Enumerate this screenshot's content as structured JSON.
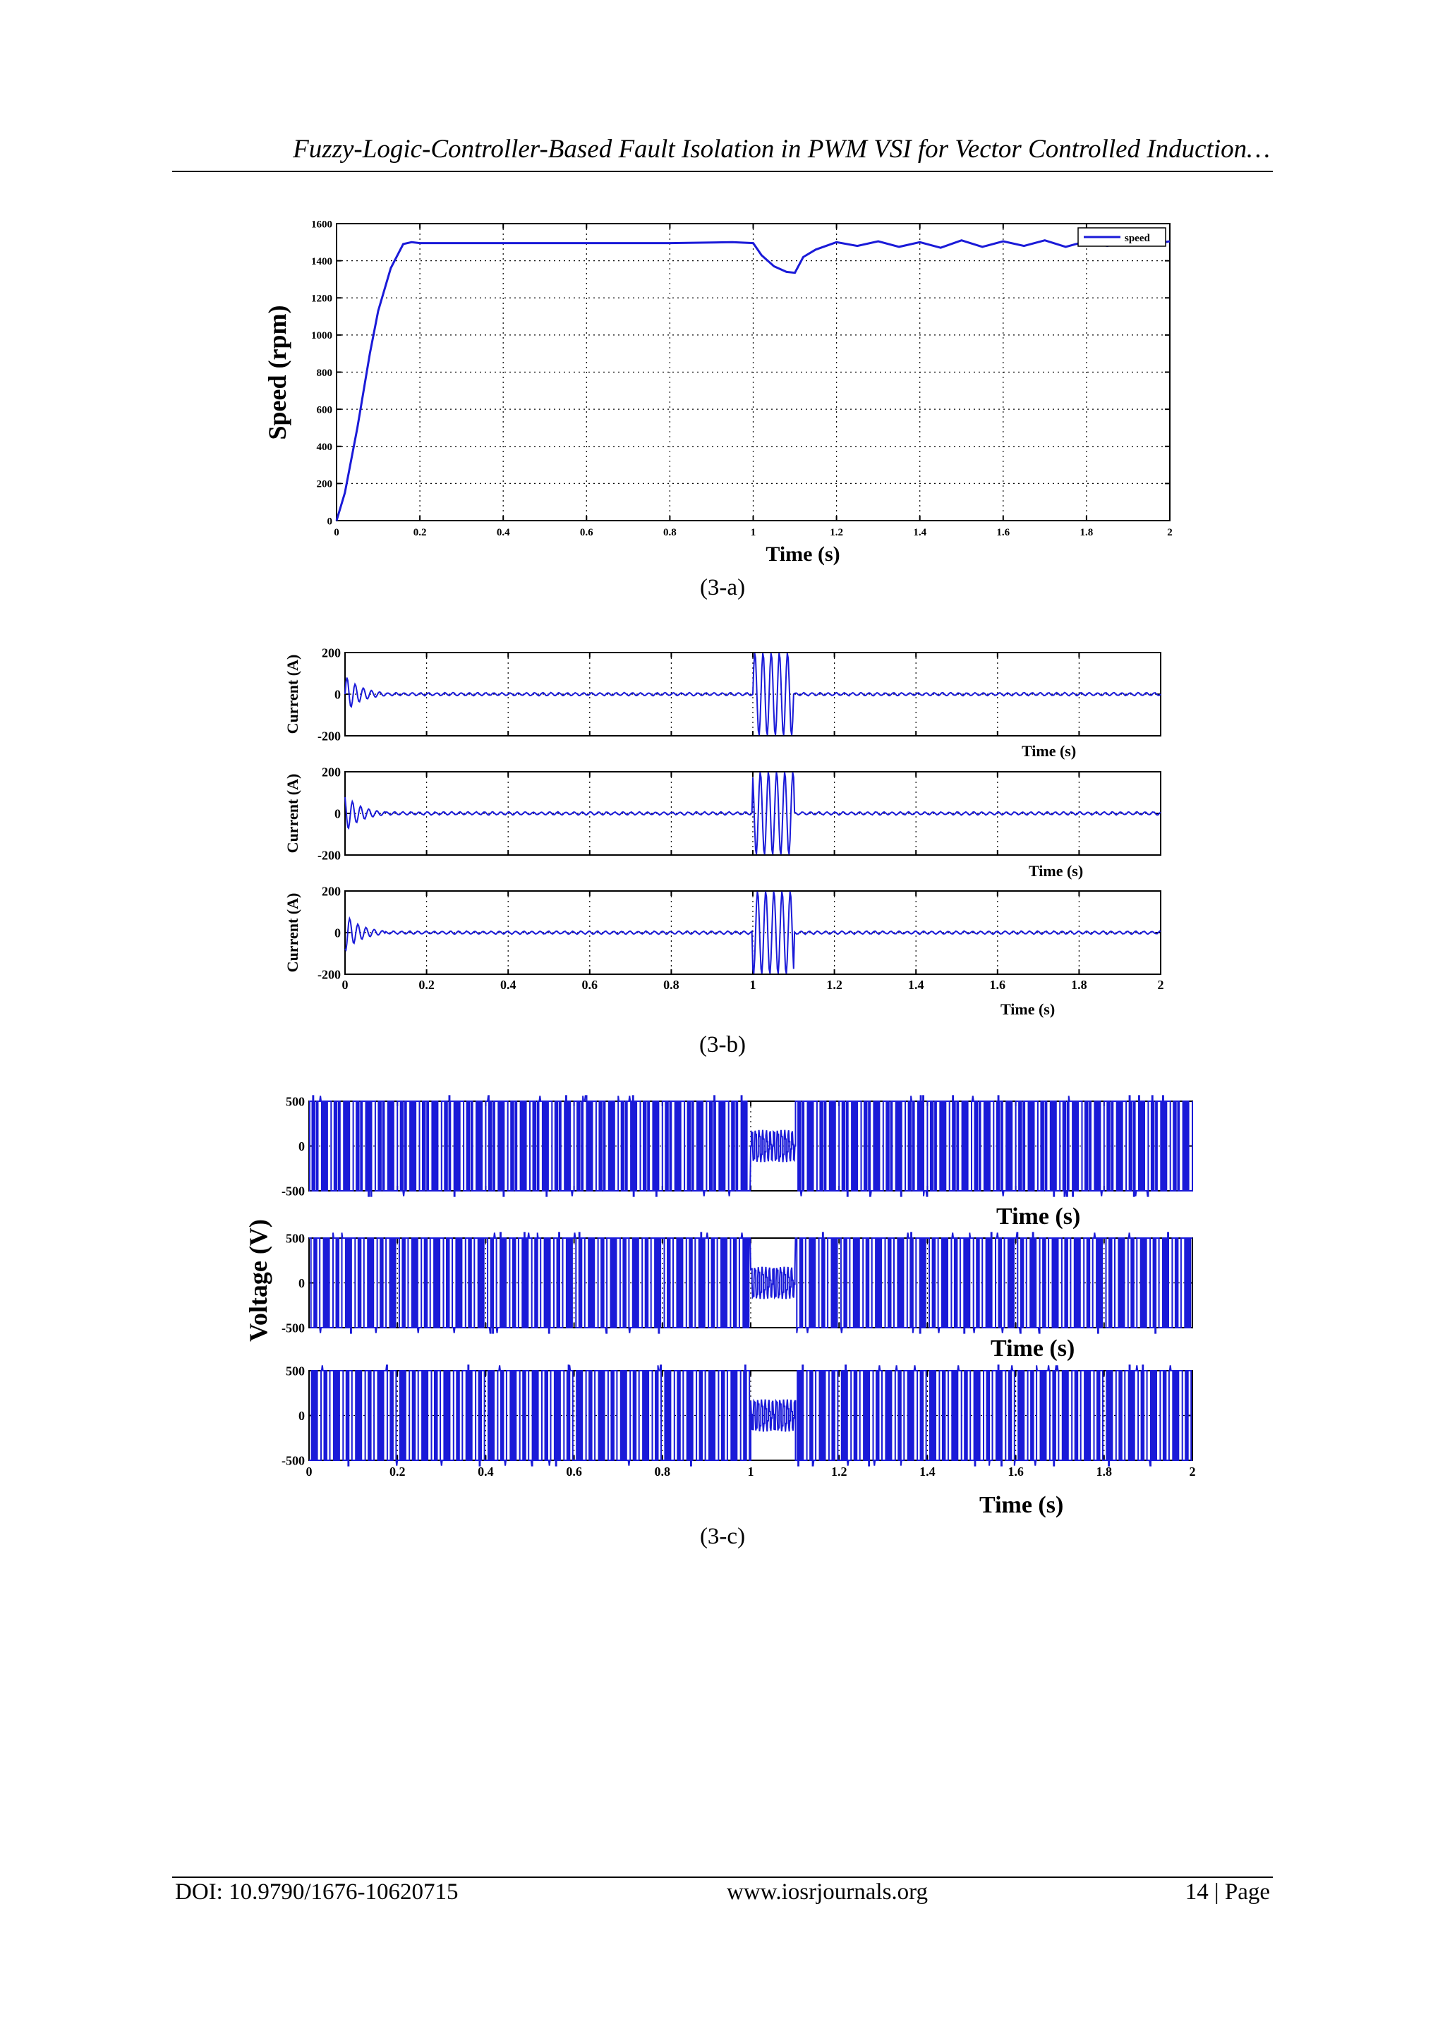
{
  "header": {
    "title": "Fuzzy-Logic-Controller-Based Fault Isolation in PWM VSI for Vector Controlled Induction…"
  },
  "captions": {
    "a": "(3-a)",
    "b": "(3-b)",
    "c": "(3-c)"
  },
  "footer": {
    "doi": "DOI: 10.9790/1676-10620715",
    "site": "www.iosrjournals.org",
    "page": "14 | Page"
  },
  "colors": {
    "trace": "#1a1ad8",
    "grid": "#000000"
  },
  "chart_data": [
    {
      "type": "line",
      "id": "3-a",
      "xlabel": "Time (s)",
      "ylabel": "Speed (rpm)",
      "xlim": [
        0,
        2
      ],
      "ylim": [
        0,
        1600
      ],
      "xticks": [
        "0",
        "0.2",
        "0.4",
        "0.6",
        "0.8",
        "1",
        "1.2",
        "1.4",
        "1.6",
        "1.8",
        "2"
      ],
      "yticks": [
        "0",
        "200",
        "400",
        "600",
        "800",
        "1000",
        "1200",
        "1400",
        "1600"
      ],
      "grid": true,
      "legend": "top-right",
      "series": [
        {
          "name": "speed",
          "x": [
            0,
            0.02,
            0.05,
            0.08,
            0.1,
            0.13,
            0.16,
            0.18,
            0.2,
            0.4,
            0.6,
            0.8,
            0.95,
            1.0,
            1.02,
            1.05,
            1.08,
            1.1,
            1.12,
            1.15,
            1.2,
            1.25,
            1.3,
            1.35,
            1.4,
            1.45,
            1.5,
            1.55,
            1.6,
            1.65,
            1.7,
            1.75,
            1.8,
            1.85,
            1.9,
            1.95,
            2.0
          ],
          "y": [
            0,
            150,
            500,
            900,
            1130,
            1360,
            1490,
            1500,
            1495,
            1495,
            1495,
            1495,
            1500,
            1495,
            1430,
            1370,
            1340,
            1335,
            1420,
            1460,
            1500,
            1480,
            1505,
            1475,
            1500,
            1470,
            1510,
            1475,
            1505,
            1480,
            1510,
            1475,
            1505,
            1480,
            1510,
            1485,
            1505
          ]
        }
      ]
    },
    {
      "type": "line",
      "id": "3-b",
      "xlabel": "Time (s)",
      "ylabel": "Current (A)",
      "xlim": [
        0,
        2
      ],
      "ylim": [
        -200,
        200
      ],
      "xticks": [
        "0",
        "0.2",
        "0.4",
        "0.6",
        "0.8",
        "1",
        "1.2",
        "1.4",
        "1.6",
        "1.8",
        "2"
      ],
      "yticks": [
        "-200",
        "0",
        "200"
      ],
      "grid": true,
      "signal": {
        "startup_amplitude": 90,
        "startup_end": 0.1,
        "steady_amplitude": 8,
        "fault_start": 1.0,
        "fault_end": 1.1,
        "fault_amplitude": 200
      },
      "panels": 3
    },
    {
      "type": "line",
      "id": "3-c",
      "xlabel": "Time (s)",
      "ylabel": "Voltage (V)",
      "xlim": [
        0,
        2
      ],
      "ylim": [
        -500,
        500
      ],
      "xticks": [
        "0",
        "0.2",
        "0.4",
        "0.6",
        "0.8",
        "1",
        "1.2",
        "1.4",
        "1.6",
        "1.8",
        "2"
      ],
      "yticks": [
        "-500",
        "0",
        "500"
      ],
      "grid": true,
      "signal": {
        "pwm_amplitude": 500,
        "fault_start": 1.0,
        "fault_end": 1.1,
        "fault_amplitude": 180
      },
      "panels": 3
    }
  ]
}
